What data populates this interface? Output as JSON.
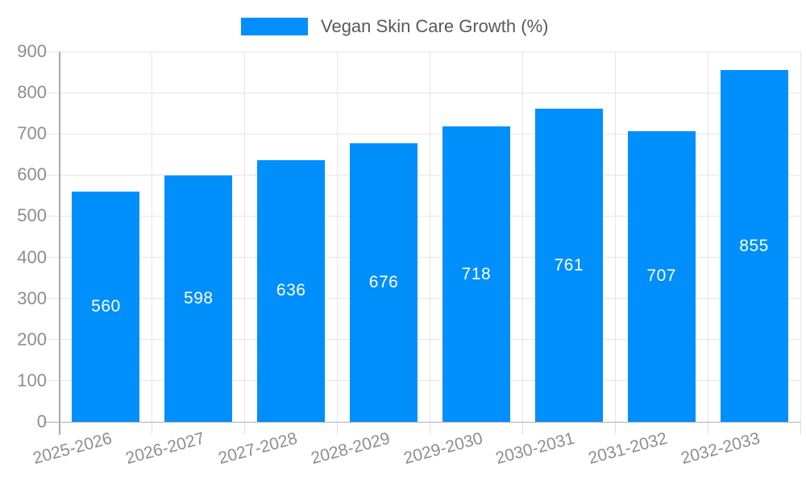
{
  "legend": {
    "label": "Vegan Skin Care Growth (%)"
  },
  "chart_data": {
    "type": "bar",
    "title": "Vegan Skin Care Growth (%)",
    "categories": [
      "2025-2026",
      "2026-2027",
      "2027-2028",
      "2028-2029",
      "2029-2030",
      "2030-2031",
      "2031-2032",
      "2032-2033"
    ],
    "values": [
      560,
      598,
      636,
      676,
      718,
      761,
      707,
      855
    ],
    "xlabel": "",
    "ylabel": "",
    "ylim": [
      0,
      900
    ],
    "ytick_step": 100,
    "ytick_labels": [
      "0",
      "100",
      "200",
      "300",
      "400",
      "500",
      "600",
      "700",
      "800",
      "900"
    ],
    "grid": true,
    "legend_position": "top",
    "bar_label_position": "center",
    "colors": {
      "bar": "#008FFB",
      "bar_label": "#FFFFFF",
      "grid": "#E6E6E6",
      "axis_line": "#A9A9A9",
      "bottom_line": "#B0B0B0",
      "tick": "#E0E0E0",
      "axis_label": "#8E8E8E",
      "legend_text": "#595959",
      "background": "#FFFFFF"
    }
  }
}
